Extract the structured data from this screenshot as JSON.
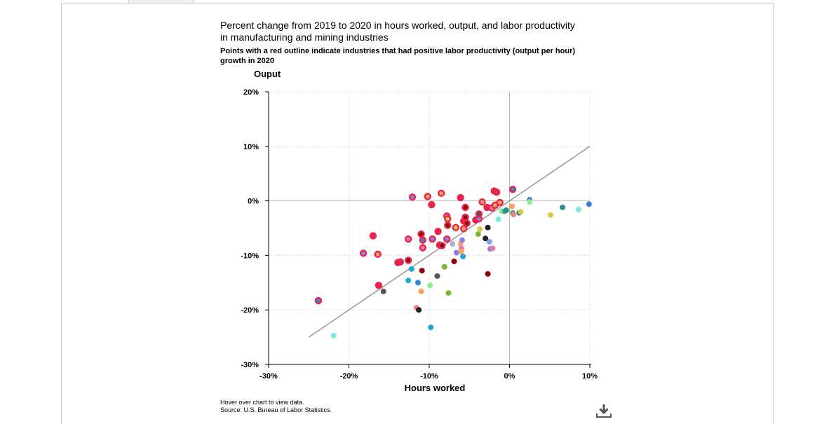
{
  "page": {
    "title": "Percent change from 2019 to 2020 in hours worked, output, and labor productivity in manufacturing and mining industries",
    "subtitle": "Points with a red outline indicate industries that had positive labor productivity (output per hour) growth in 2020",
    "footer_hover": "Hover over chart to view data.",
    "footer_source": "Source: U.S. Bureau of Labor Statistics.",
    "download_icon": "download-icon"
  },
  "chart_data": {
    "type": "scatter",
    "xlabel": "Hours worked",
    "ylabel": "Ouput",
    "xlim": [
      -30,
      10
    ],
    "ylim": [
      -30,
      20
    ],
    "x_ticks": [
      -30,
      -20,
      -10,
      0,
      10
    ],
    "x_tick_labels": [
      "-30%",
      "-20%",
      "-10%",
      "0%",
      "10%"
    ],
    "y_ticks": [
      -30,
      -20,
      -10,
      0,
      10,
      20
    ],
    "y_tick_labels": [
      "-30%",
      "-20%",
      "-10%",
      "0%",
      "10%",
      "20%"
    ],
    "grid": true,
    "reference_line": {
      "x": [
        -25,
        10
      ],
      "y": [
        -25,
        10
      ],
      "color": "#999999"
    },
    "outline_color": "#e8254b",
    "points": [
      {
        "x": -23.8,
        "y": -18.3,
        "c": "#4a7fc1",
        "o": 1
      },
      {
        "x": -18.2,
        "y": -9.6,
        "c": "#8f7ee8",
        "o": 1
      },
      {
        "x": -17.0,
        "y": -6.4,
        "c": "#e8254b",
        "o": 1
      },
      {
        "x": -16.4,
        "y": -9.8,
        "c": "#f4a460",
        "o": 1
      },
      {
        "x": -16.3,
        "y": -15.5,
        "c": "#e8254b",
        "o": 1
      },
      {
        "x": -15.7,
        "y": -16.6,
        "c": "#555555",
        "o": 0
      },
      {
        "x": -13.9,
        "y": -11.3,
        "c": "#555555",
        "o": 1
      },
      {
        "x": -13.6,
        "y": -11.2,
        "c": "#e8254b",
        "o": 1
      },
      {
        "x": -12.6,
        "y": -7.0,
        "c": "#e87bb0",
        "o": 1
      },
      {
        "x": -12.6,
        "y": -10.9,
        "c": "#8b0000",
        "o": 1
      },
      {
        "x": -12.6,
        "y": -14.6,
        "c": "#1fa8d0",
        "o": 0
      },
      {
        "x": -12.2,
        "y": -12.5,
        "c": "#1fa8d0",
        "o": 0
      },
      {
        "x": -12.1,
        "y": 0.7,
        "c": "#8f7ee8",
        "o": 1
      },
      {
        "x": -11.6,
        "y": -19.6,
        "c": "#f47f7f",
        "o": 0
      },
      {
        "x": -11.4,
        "y": -15.0,
        "c": "#3b82d6",
        "o": 0
      },
      {
        "x": -11.3,
        "y": -20.0,
        "c": "#222222",
        "o": 0
      },
      {
        "x": -11.0,
        "y": -6.1,
        "c": "#8b0000",
        "o": 1
      },
      {
        "x": -11.0,
        "y": -16.6,
        "c": "#f4a460",
        "o": 0
      },
      {
        "x": -10.9,
        "y": -12.8,
        "c": "#8b0000",
        "o": 0
      },
      {
        "x": -10.8,
        "y": -7.2,
        "c": "#3b82d6",
        "o": 1
      },
      {
        "x": -10.8,
        "y": -8.6,
        "c": "#e87bb0",
        "o": 1
      },
      {
        "x": -10.2,
        "y": 0.8,
        "c": "#f4a460",
        "o": 1
      },
      {
        "x": -9.9,
        "y": -15.5,
        "c": "#90ee90",
        "o": 0
      },
      {
        "x": -9.8,
        "y": -23.2,
        "c": "#1fa8d0",
        "o": 0
      },
      {
        "x": -9.7,
        "y": -0.7,
        "c": "#e8254b",
        "o": 1
      },
      {
        "x": -9.6,
        "y": -7.0,
        "c": "#8f7ee8",
        "o": 1
      },
      {
        "x": -9.0,
        "y": -13.8,
        "c": "#555555",
        "o": 0
      },
      {
        "x": -8.9,
        "y": -5.6,
        "c": "#e8254b",
        "o": 1
      },
      {
        "x": -8.7,
        "y": -8.1,
        "c": "#555555",
        "o": 1
      },
      {
        "x": -8.5,
        "y": 1.4,
        "c": "#f4a460",
        "o": 1
      },
      {
        "x": -8.4,
        "y": -8.2,
        "c": "#8b0000",
        "o": 1
      },
      {
        "x": -8.1,
        "y": -12.1,
        "c": "#7cb82f",
        "o": 0
      },
      {
        "x": -7.8,
        "y": -2.8,
        "c": "#e87bb0",
        "o": 1
      },
      {
        "x": -7.8,
        "y": -7.0,
        "c": "#8f7ee8",
        "o": 1
      },
      {
        "x": -7.7,
        "y": -3.3,
        "c": "#d9c94a",
        "o": 1
      },
      {
        "x": -7.7,
        "y": -4.5,
        "c": "#8b0000",
        "o": 1
      },
      {
        "x": -7.6,
        "y": -16.9,
        "c": "#7cb82f",
        "o": 0
      },
      {
        "x": -7.1,
        "y": -7.9,
        "c": "#aab0d6",
        "o": 0
      },
      {
        "x": -6.9,
        "y": -11.1,
        "c": "#8b0000",
        "o": 0
      },
      {
        "x": -6.7,
        "y": -4.9,
        "c": "#d9c94a",
        "o": 1
      },
      {
        "x": -6.6,
        "y": -9.5,
        "c": "#8f7ee8",
        "o": 0
      },
      {
        "x": -6.1,
        "y": -7.9,
        "c": "#f4a460",
        "o": 0
      },
      {
        "x": -6.1,
        "y": 0.6,
        "c": "#e8254b",
        "o": 1
      },
      {
        "x": -6.0,
        "y": -8.7,
        "c": "#e87bb0",
        "o": 0
      },
      {
        "x": -6.0,
        "y": -9.3,
        "c": "#f4a460",
        "o": 0
      },
      {
        "x": -5.9,
        "y": -7.2,
        "c": "#8f7ee8",
        "o": 0
      },
      {
        "x": -5.8,
        "y": -10.2,
        "c": "#1fa8d0",
        "o": 0
      },
      {
        "x": -5.7,
        "y": -5.1,
        "c": "#f4a460",
        "o": 1
      },
      {
        "x": -5.7,
        "y": -3.7,
        "c": "#e8254b",
        "o": 1
      },
      {
        "x": -5.5,
        "y": -1.2,
        "c": "#8b0000",
        "o": 1
      },
      {
        "x": -5.5,
        "y": -3.0,
        "c": "#8b0000",
        "o": 1
      },
      {
        "x": -5.3,
        "y": -4.1,
        "c": "#8b0000",
        "o": 1
      },
      {
        "x": -4.2,
        "y": -3.5,
        "c": "#e8254b",
        "o": 1
      },
      {
        "x": -3.9,
        "y": -6.1,
        "c": "#7cb82f",
        "o": 0
      },
      {
        "x": -3.8,
        "y": -3.3,
        "c": "#8f7ee8",
        "o": 1
      },
      {
        "x": -3.8,
        "y": -2.4,
        "c": "#555555",
        "o": 1
      },
      {
        "x": -3.7,
        "y": -5.2,
        "c": "#d9c94a",
        "o": 0
      },
      {
        "x": -3.4,
        "y": -0.2,
        "c": "#f4a460",
        "o": 1
      },
      {
        "x": -3.0,
        "y": -6.9,
        "c": "#222222",
        "o": 0
      },
      {
        "x": -2.8,
        "y": -1.2,
        "c": "#e8254b",
        "o": 1
      },
      {
        "x": -2.7,
        "y": -4.9,
        "c": "#222222",
        "o": 0
      },
      {
        "x": -2.7,
        "y": -13.4,
        "c": "#8b0000",
        "o": 0
      },
      {
        "x": -2.5,
        "y": -7.5,
        "c": "#7aa9e0",
        "o": 0
      },
      {
        "x": -2.4,
        "y": -8.8,
        "c": "#8f7ee8",
        "o": 0
      },
      {
        "x": -2.2,
        "y": -1.3,
        "c": "#e87bb0",
        "o": 1
      },
      {
        "x": -2.1,
        "y": -8.7,
        "c": "#e87bb0",
        "o": 0
      },
      {
        "x": -1.9,
        "y": 1.8,
        "c": "#e8254b",
        "o": 1
      },
      {
        "x": -1.8,
        "y": -0.8,
        "c": "#f4a460",
        "o": 1
      },
      {
        "x": -1.6,
        "y": 1.6,
        "c": "#e8254b",
        "o": 1
      },
      {
        "x": -1.4,
        "y": -3.4,
        "c": "#7de8e0",
        "o": 0
      },
      {
        "x": -1.2,
        "y": -0.3,
        "c": "#f4a460",
        "o": 1
      },
      {
        "x": -1.0,
        "y": -1.9,
        "c": "#90ee90",
        "o": 0
      },
      {
        "x": -0.6,
        "y": -1.9,
        "c": "#3cb371",
        "o": 0
      },
      {
        "x": -0.4,
        "y": -1.7,
        "c": "#2a8f8f",
        "o": 0
      },
      {
        "x": 0.3,
        "y": -1.0,
        "c": "#f4a460",
        "o": 0
      },
      {
        "x": 0.4,
        "y": 2.1,
        "c": "#3b82d6",
        "o": 1
      },
      {
        "x": 0.4,
        "y": -2.2,
        "c": "#3cb371",
        "o": 0
      },
      {
        "x": 0.5,
        "y": -2.5,
        "c": "#f47f7f",
        "o": 0
      },
      {
        "x": 1.2,
        "y": -2.2,
        "c": "#2a8f8f",
        "o": 0
      },
      {
        "x": 1.4,
        "y": -2.0,
        "c": "#d9c94a",
        "o": 0
      },
      {
        "x": 2.5,
        "y": 0.2,
        "c": "#3b82d6",
        "o": 0
      },
      {
        "x": 2.5,
        "y": -0.2,
        "c": "#90ee90",
        "o": 0
      },
      {
        "x": 5.1,
        "y": -2.6,
        "c": "#d9c94a",
        "o": 0
      },
      {
        "x": 6.6,
        "y": -1.2,
        "c": "#2a8f8f",
        "o": 0
      },
      {
        "x": 8.6,
        "y": -1.6,
        "c": "#7de8e0",
        "o": 0
      },
      {
        "x": 9.9,
        "y": -0.6,
        "c": "#3b82d6",
        "o": 0
      },
      {
        "x": -21.9,
        "y": -24.7,
        "c": "#7de8e0",
        "o": 0
      }
    ]
  }
}
